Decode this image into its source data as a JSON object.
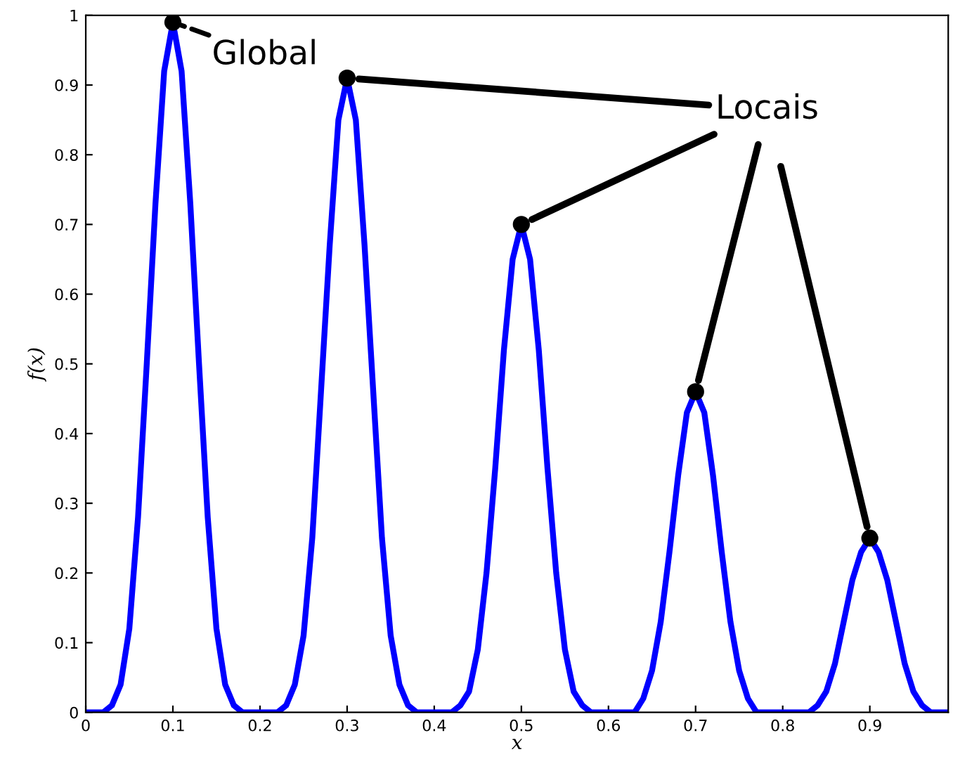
{
  "chart_data": {
    "type": "line",
    "xlabel": "x",
    "ylabel": "f(x)",
    "xlim": [
      0,
      0.99
    ],
    "ylim": [
      0,
      1
    ],
    "xticks": [
      0,
      0.1,
      0.2,
      0.3,
      0.4,
      0.5,
      0.6,
      0.7,
      0.8,
      0.9
    ],
    "yticks": [
      0,
      0.1,
      0.2,
      0.3,
      0.4,
      0.5,
      0.6,
      0.7,
      0.8,
      0.9,
      1
    ],
    "grid": false,
    "series": [
      {
        "color": "#0000ff",
        "marker": "none",
        "x": [
          0,
          0.01,
          0.02,
          0.03,
          0.04,
          0.05,
          0.06,
          0.07,
          0.08,
          0.09,
          0.1,
          0.11,
          0.12,
          0.13,
          0.14,
          0.15,
          0.16,
          0.17,
          0.18,
          0.19,
          0.2,
          0.21,
          0.22,
          0.23,
          0.24,
          0.25,
          0.26,
          0.27,
          0.28,
          0.29,
          0.3,
          0.31,
          0.32,
          0.33,
          0.34,
          0.35,
          0.36,
          0.37,
          0.38,
          0.39,
          0.4,
          0.41,
          0.42,
          0.43,
          0.44,
          0.45,
          0.46,
          0.47,
          0.48,
          0.49,
          0.5,
          0.51,
          0.52,
          0.53,
          0.54,
          0.55,
          0.56,
          0.57,
          0.58,
          0.59,
          0.6,
          0.61,
          0.62,
          0.63,
          0.64,
          0.65,
          0.66,
          0.67,
          0.68,
          0.69,
          0.7,
          0.71,
          0.72,
          0.73,
          0.74,
          0.75,
          0.76,
          0.77,
          0.78,
          0.79,
          0.8,
          0.81,
          0.82,
          0.83,
          0.84,
          0.85,
          0.86,
          0.87,
          0.88,
          0.89,
          0.9,
          0.91,
          0.92,
          0.93,
          0.94,
          0.95,
          0.96,
          0.97,
          0.98,
          0.99
        ],
        "values": [
          0,
          0,
          0,
          0.01,
          0.04,
          0.12,
          0.28,
          0.5,
          0.73,
          0.92,
          0.99,
          0.92,
          0.73,
          0.5,
          0.28,
          0.12,
          0.04,
          0.01,
          0,
          0,
          0,
          0,
          0,
          0.01,
          0.04,
          0.11,
          0.25,
          0.46,
          0.67,
          0.85,
          0.91,
          0.85,
          0.67,
          0.46,
          0.25,
          0.11,
          0.04,
          0.01,
          0,
          0,
          0,
          0,
          0,
          0.01,
          0.03,
          0.09,
          0.2,
          0.35,
          0.52,
          0.65,
          0.7,
          0.65,
          0.52,
          0.35,
          0.2,
          0.09,
          0.03,
          0.01,
          0,
          0,
          0,
          0,
          0,
          0,
          0.02,
          0.06,
          0.13,
          0.23,
          0.34,
          0.43,
          0.46,
          0.43,
          0.34,
          0.23,
          0.13,
          0.06,
          0.02,
          0,
          0,
          0,
          0,
          0,
          0,
          0,
          0.01,
          0.03,
          0.07,
          0.13,
          0.19,
          0.23,
          0.25,
          0.23,
          0.19,
          0.13,
          0.07,
          0.03,
          0.01,
          0,
          0,
          0
        ]
      },
      {
        "type": "scatter",
        "color": "#000000",
        "marker": "circle",
        "x": [
          0.1,
          0.3,
          0.5,
          0.7,
          0.9
        ],
        "values": [
          0.99,
          0.91,
          0.7,
          0.46,
          0.25
        ]
      }
    ],
    "annotations": [
      {
        "text": "Global",
        "x": 0.1,
        "y": 0.99
      },
      {
        "text": "Locais",
        "x": 0.7,
        "y": 0.46
      }
    ]
  }
}
